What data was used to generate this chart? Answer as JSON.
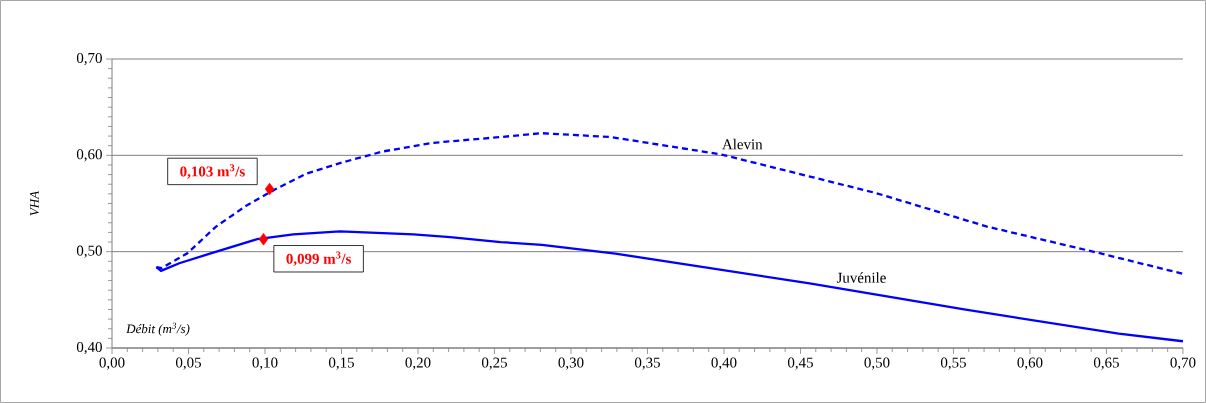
{
  "chart_data": {
    "type": "line",
    "xlabel": "*Débit (m$^{3}$/s)*",
    "ylabel": "*VHA*",
    "xlim": [
      0,
      0.7
    ],
    "ylim": [
      0.4,
      0.7
    ],
    "xticks": [
      {
        "value": 0,
        "label": "0,00"
      },
      {
        "value": 0.05,
        "label": "0,05"
      },
      {
        "value": 0.1,
        "label": "0,10"
      },
      {
        "value": 0.15,
        "label": "0,15"
      },
      {
        "value": 0.2,
        "label": "0,20"
      },
      {
        "value": 0.25,
        "label": "0,25"
      },
      {
        "value": 0.3,
        "label": "0,30"
      },
      {
        "value": 0.35,
        "label": "0,35"
      },
      {
        "value": 0.4,
        "label": "0,40"
      },
      {
        "value": 0.45,
        "label": "0,45"
      },
      {
        "value": 0.5,
        "label": "0,50"
      },
      {
        "value": 0.55,
        "label": "0,55"
      },
      {
        "value": 0.6,
        "label": "0,60"
      },
      {
        "value": 0.65,
        "label": "0,65"
      },
      {
        "value": 0.7,
        "label": "0,70"
      }
    ],
    "yticks": [
      {
        "value": 0.4,
        "label": "0,40"
      },
      {
        "value": 0.5,
        "label": "0,50"
      },
      {
        "value": 0.6,
        "label": "0,60"
      },
      {
        "value": 0.7,
        "label": "0,70"
      }
    ],
    "grid": "y",
    "marker": "none",
    "series": [
      {
        "name": "Alevin",
        "color": "#0000ff",
        "line_style": "dashed",
        "x": [
          0.029,
          0.0325,
          0.049,
          0.068,
          0.088,
          0.107,
          0.127,
          0.149,
          0.177,
          0.21,
          0.254,
          0.281,
          0.326,
          0.398,
          0.499,
          0.572,
          0.644,
          0.7
        ],
        "values": [
          0.484,
          0.483,
          0.498,
          0.526,
          0.548,
          0.565,
          0.581,
          0.592,
          0.604,
          0.613,
          0.619,
          0.623,
          0.619,
          0.601,
          0.561,
          0.526,
          0.499,
          0.477
        ]
      },
      {
        "name": "Juvénile",
        "color": "#0000ff",
        "line_style": "solid",
        "x": [
          0.029,
          0.032,
          0.044,
          0.064,
          0.095,
          0.1185,
          0.149,
          0.197,
          0.221,
          0.254,
          0.281,
          0.329,
          0.456,
          0.557,
          0.658,
          0.7
        ],
        "values": [
          0.484,
          0.48,
          0.488,
          0.498,
          0.513,
          0.518,
          0.521,
          0.518,
          0.515,
          0.51,
          0.507,
          0.498,
          0.467,
          0.44,
          0.415,
          0.407
        ]
      }
    ],
    "annotations": [
      {
        "text": "0,103 m$^{3}$/s",
        "x": 0.103,
        "y": 0.565
      },
      {
        "text": "0,099 m$^{3}$/s",
        "x": 0.099,
        "y": 0.513
      }
    ]
  }
}
